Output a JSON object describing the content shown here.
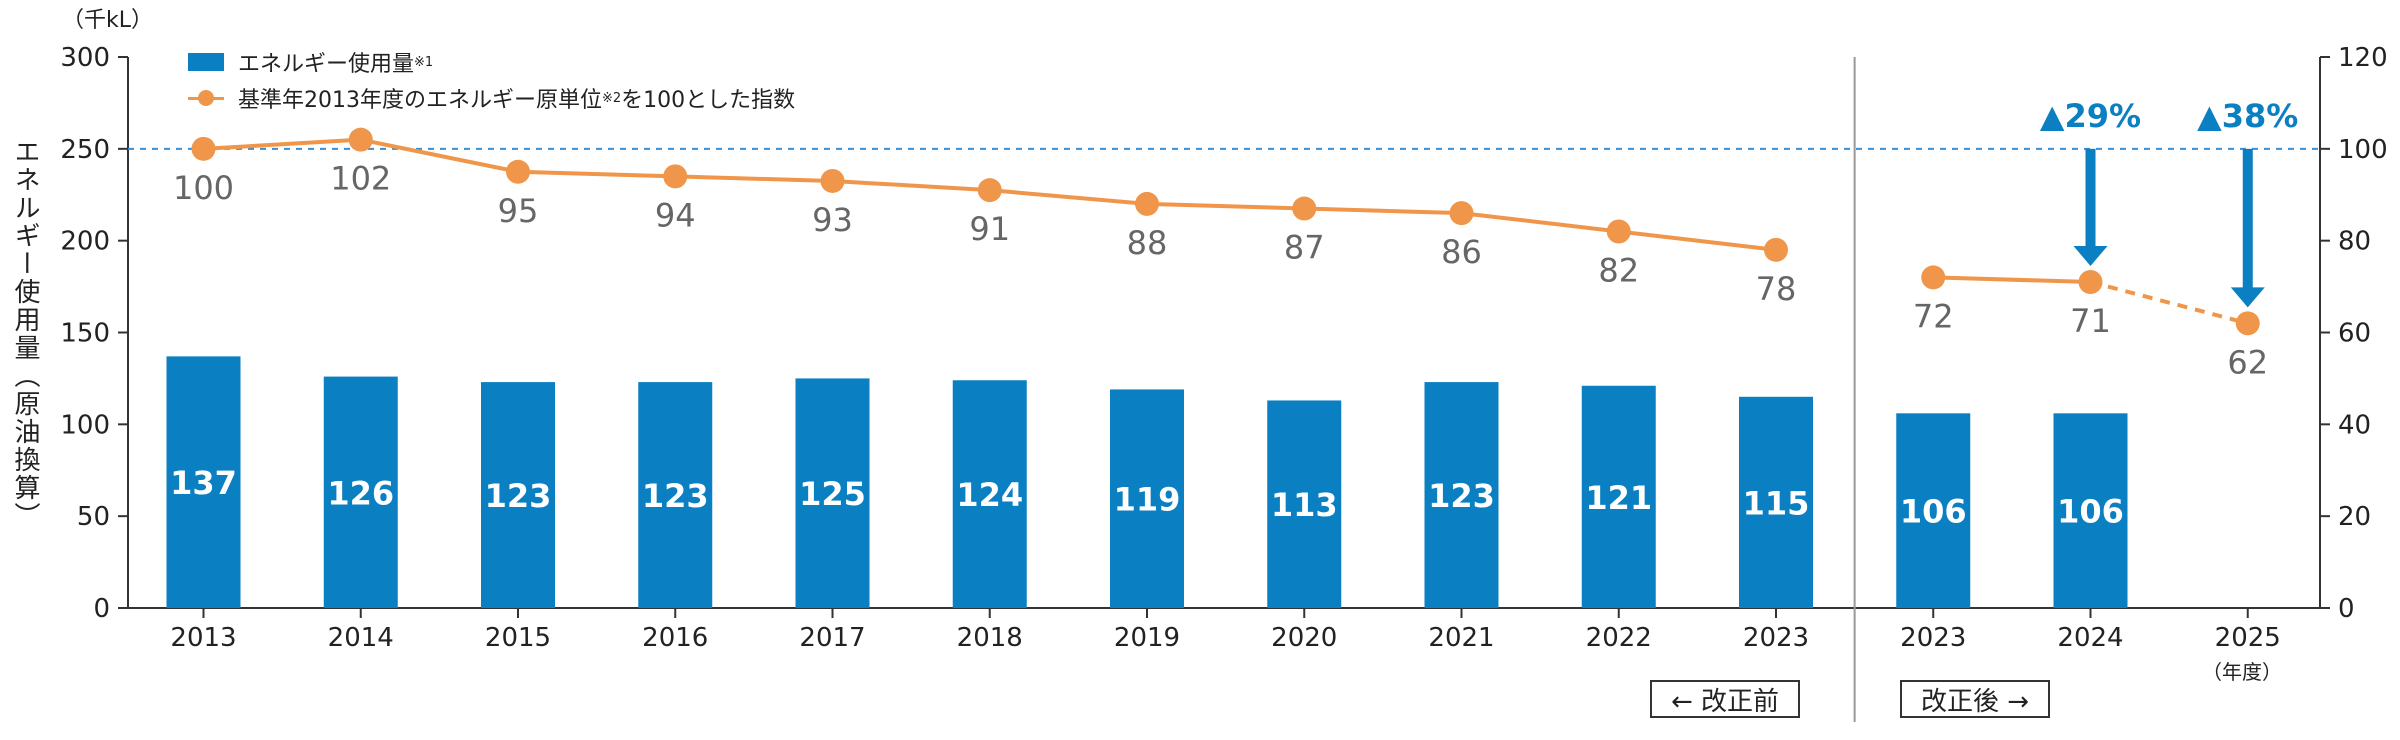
{
  "chart_data": {
    "type": "bar",
    "unit_label": "（千kL）",
    "ylabel": "エネルギー使用量（原油換算）",
    "categories": [
      "2013",
      "2014",
      "2015",
      "2016",
      "2017",
      "2018",
      "2019",
      "2020",
      "2021",
      "2022",
      "2023",
      "2023",
      "2024",
      "2025"
    ],
    "bar_series": {
      "name": "エネルギー使用量",
      "note_mark": "※1",
      "values": [
        137,
        126,
        123,
        123,
        125,
        124,
        119,
        113,
        123,
        121,
        115,
        106,
        106,
        null
      ],
      "color": "#0A7FC2",
      "label_color": "#ffffff"
    },
    "line_series": {
      "name": "基準年2013年度のエネルギー原単位",
      "note_mark": "※2",
      "name_suffix": "を100とした指数",
      "color": "#F0964A",
      "segment1": {
        "indices": [
          0,
          1,
          2,
          3,
          4,
          5,
          6,
          7,
          8,
          9,
          10
        ],
        "values": [
          100,
          102,
          95,
          94,
          93,
          91,
          88,
          87,
          86,
          82,
          78
        ]
      },
      "segment2": {
        "indices": [
          11,
          12
        ],
        "values": [
          72,
          71
        ]
      },
      "forecast": {
        "indices": [
          12,
          13
        ],
        "values": [
          71,
          62
        ]
      },
      "point_labels": [
        "100",
        "102",
        "95",
        "94",
        "93",
        "91",
        "88",
        "87",
        "86",
        "82",
        "78",
        "72",
        "71",
        "62"
      ],
      "point_values": [
        100,
        102,
        95,
        94,
        93,
        91,
        88,
        87,
        86,
        82,
        78,
        72,
        71,
        62
      ]
    },
    "left_axis": {
      "min": 0,
      "max": 300,
      "ticks": [
        0,
        50,
        100,
        150,
        200,
        250,
        300
      ]
    },
    "right_axis": {
      "min": 0,
      "max": 120,
      "ticks": [
        0,
        20,
        40,
        60,
        80,
        100,
        120
      ]
    },
    "reference_line": {
      "right_value": 100,
      "style": "dashed",
      "color": "#3A8FD0"
    },
    "annotations": [
      {
        "text": "▲29%",
        "index": 12,
        "from_right": 100,
        "to_right": 71,
        "color": "#0A7FC2"
      },
      {
        "text": "▲38%",
        "index": 13,
        "from_right": 100,
        "to_right": 62,
        "color": "#0A7FC2"
      }
    ],
    "year_note": "（年度）",
    "period_labels": {
      "before": "← 改正前",
      "after": "改正後 →"
    },
    "divider_after_index": 10,
    "label_color": "#666666",
    "axis_color": "#333333"
  }
}
